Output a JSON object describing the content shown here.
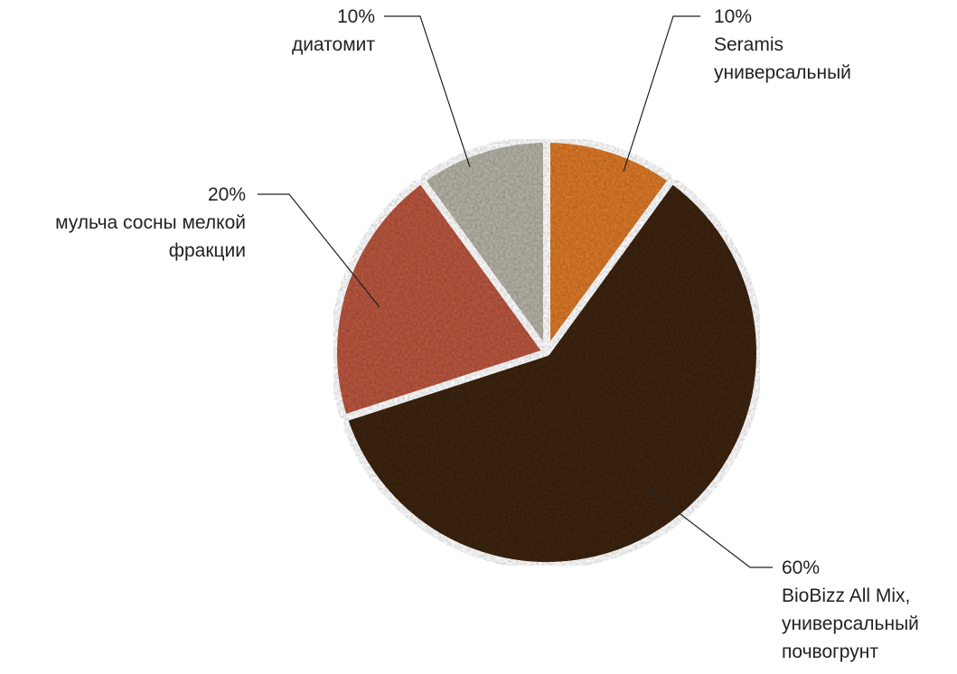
{
  "chart_data": {
    "type": "pie",
    "categories": [
      "Seramis универсальный",
      "BioBizz All Mix, универсальный почвогрунт",
      "мульча сосны мелкой фракции",
      "диатомит"
    ],
    "values": [
      10,
      60,
      20,
      10
    ],
    "value_labels": [
      "10%",
      "60%",
      "20%",
      "10%"
    ],
    "colors": [
      "#d9782a",
      "#3d2519",
      "#b8563f",
      "#b4b1a5"
    ]
  }
}
